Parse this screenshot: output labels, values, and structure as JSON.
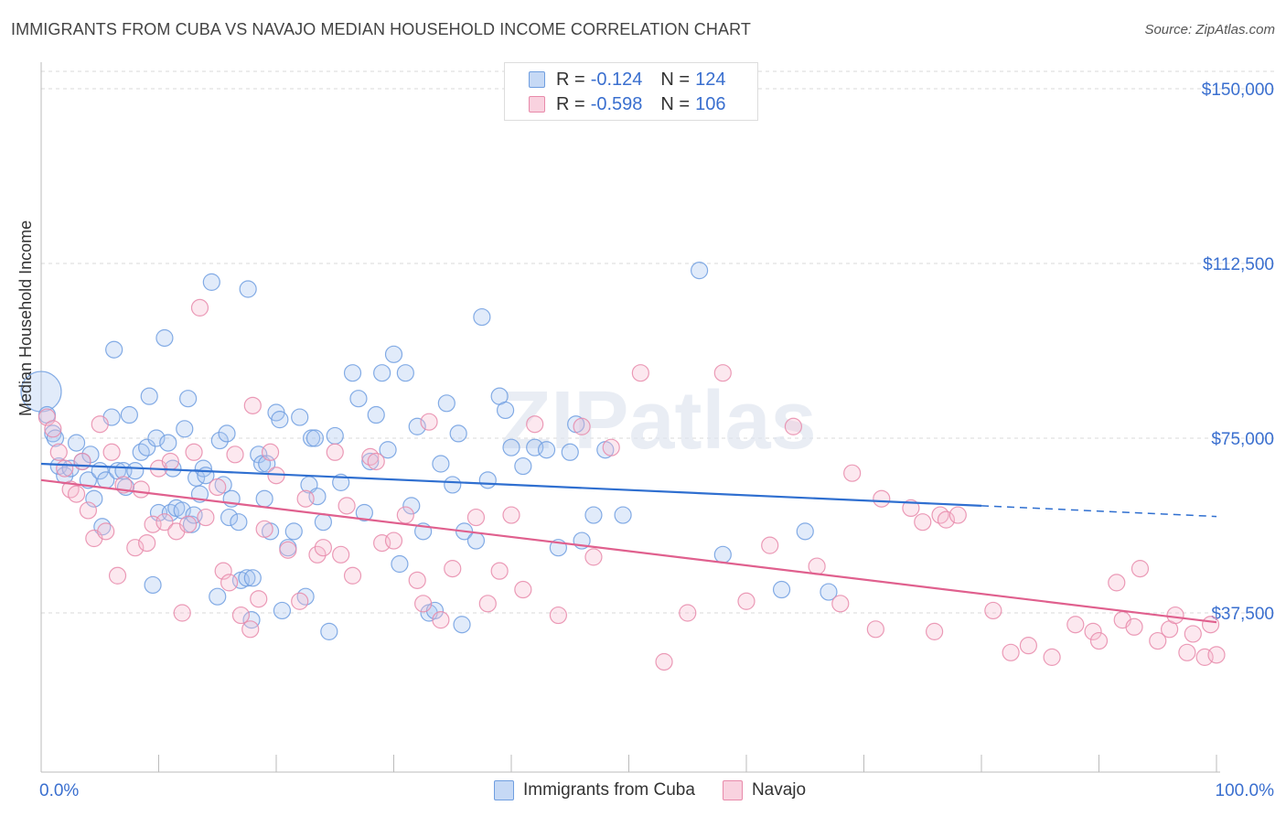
{
  "title": "IMMIGRANTS FROM CUBA VS NAVAJO MEDIAN HOUSEHOLD INCOME CORRELATION CHART",
  "source": "Source: ZipAtlas.com",
  "watermark": "ZIPatlas",
  "legend": {
    "rows": [
      {
        "r_label": "R =",
        "r_value": "-0.124",
        "n_label": "N =",
        "n_value": "124",
        "color": "#a9c6f0",
        "border": "#6f9ee0"
      },
      {
        "r_label": "R =",
        "r_value": "-0.598",
        "n_label": "N =",
        "n_value": "106",
        "color": "#f6bcd0",
        "border": "#e88aaa"
      }
    ]
  },
  "chart_data": {
    "type": "scatter",
    "title": "IMMIGRANTS FROM CUBA VS NAVAJO MEDIAN HOUSEHOLD INCOME CORRELATION CHART",
    "xlabel": "",
    "ylabel": "Median Household Income",
    "xlim": [
      0,
      100
    ],
    "ylim": [
      0,
      150000
    ],
    "x_tick_labels": [
      "0.0%",
      "100.0%"
    ],
    "y_ticks": [
      {
        "value": 150000,
        "label": "$150,000"
      },
      {
        "value": 112500,
        "label": "$112,500"
      },
      {
        "value": 75000,
        "label": "$75,000"
      },
      {
        "value": 37500,
        "label": "$37,500"
      }
    ],
    "series": [
      {
        "name": "Immigrants from Cuba",
        "color": "#6f9ee0",
        "fill": "rgba(169,198,240,0.35)",
        "trend": {
          "x0": 0,
          "y0": 69500,
          "x1": 80,
          "y1": 60500,
          "dash_to_x": 100,
          "dash_to_y": 58200,
          "color": "#2f6fd0"
        },
        "points": [
          [
            0,
            85000
          ],
          [
            0.5,
            80000
          ],
          [
            1,
            76000
          ],
          [
            1.2,
            75000
          ],
          [
            1.5,
            69000
          ],
          [
            2,
            67000
          ],
          [
            2.5,
            68500
          ],
          [
            3,
            74000
          ],
          [
            3.5,
            70000
          ],
          [
            4,
            66000
          ],
          [
            4.2,
            71500
          ],
          [
            4.5,
            62000
          ],
          [
            5,
            68000
          ],
          [
            5.5,
            66000
          ],
          [
            5.2,
            56000
          ],
          [
            6,
            79500
          ],
          [
            6.2,
            94000
          ],
          [
            6.5,
            68000
          ],
          [
            7,
            68000
          ],
          [
            7.2,
            64500
          ],
          [
            7.5,
            80000
          ],
          [
            8,
            68000
          ],
          [
            8.5,
            72000
          ],
          [
            9,
            73000
          ],
          [
            9.2,
            84000
          ],
          [
            9.5,
            43500
          ],
          [
            9.8,
            75000
          ],
          [
            10,
            59000
          ],
          [
            10.5,
            96500
          ],
          [
            10.8,
            74000
          ],
          [
            11,
            59000
          ],
          [
            11.2,
            68500
          ],
          [
            11.5,
            60000
          ],
          [
            12,
            59500
          ],
          [
            12.2,
            77000
          ],
          [
            12.5,
            83500
          ],
          [
            12.8,
            56500
          ],
          [
            13,
            58500
          ],
          [
            13.2,
            66500
          ],
          [
            13.5,
            63000
          ],
          [
            13.8,
            68500
          ],
          [
            14,
            67000
          ],
          [
            14.5,
            108500
          ],
          [
            15,
            41000
          ],
          [
            15.2,
            74500
          ],
          [
            15.5,
            65000
          ],
          [
            15.8,
            76000
          ],
          [
            16,
            58000
          ],
          [
            16.2,
            62000
          ],
          [
            16.8,
            57000
          ],
          [
            17,
            44500
          ],
          [
            17.5,
            45000
          ],
          [
            17.6,
            107000
          ],
          [
            17.9,
            36000
          ],
          [
            18,
            45000
          ],
          [
            18.5,
            71500
          ],
          [
            18.8,
            69500
          ],
          [
            19,
            62000
          ],
          [
            19.2,
            69500
          ],
          [
            19.5,
            55000
          ],
          [
            20,
            80500
          ],
          [
            20.3,
            79000
          ],
          [
            20.5,
            38000
          ],
          [
            21,
            51500
          ],
          [
            21.5,
            55000
          ],
          [
            22,
            79500
          ],
          [
            22.5,
            41000
          ],
          [
            22.8,
            65000
          ],
          [
            23,
            75000
          ],
          [
            23.3,
            75000
          ],
          [
            23.5,
            62500
          ],
          [
            24,
            57000
          ],
          [
            24.5,
            33500
          ],
          [
            25,
            75500
          ],
          [
            25.5,
            65500
          ],
          [
            26.5,
            89000
          ],
          [
            27,
            83500
          ],
          [
            27.5,
            59000
          ],
          [
            28,
            70000
          ],
          [
            28.5,
            80000
          ],
          [
            29,
            89000
          ],
          [
            29.5,
            72500
          ],
          [
            30,
            93000
          ],
          [
            30.5,
            48000
          ],
          [
            31,
            89000
          ],
          [
            31.5,
            60500
          ],
          [
            32,
            77500
          ],
          [
            32.5,
            55000
          ],
          [
            33,
            37500
          ],
          [
            33.5,
            38000
          ],
          [
            34,
            69500
          ],
          [
            34.5,
            82500
          ],
          [
            35,
            65000
          ],
          [
            35.5,
            76000
          ],
          [
            35.8,
            35000
          ],
          [
            36,
            55000
          ],
          [
            37,
            53000
          ],
          [
            37.5,
            101000
          ],
          [
            38,
            66000
          ],
          [
            39,
            84000
          ],
          [
            39.5,
            81000
          ],
          [
            40,
            73000
          ],
          [
            41,
            69000
          ],
          [
            42,
            73000
          ],
          [
            43,
            72500
          ],
          [
            44,
            51500
          ],
          [
            45,
            72000
          ],
          [
            45.5,
            78000
          ],
          [
            46,
            53000
          ],
          [
            47,
            58500
          ],
          [
            48,
            72500
          ],
          [
            49.5,
            58500
          ],
          [
            56,
            111000
          ],
          [
            58,
            50000
          ],
          [
            63,
            42500
          ],
          [
            65,
            55000
          ],
          [
            67,
            42000
          ]
        ]
      },
      {
        "name": "Navajo",
        "color": "#e88aaa",
        "fill": "rgba(246,188,208,0.35)",
        "trend": {
          "x0": 0,
          "y0": 66000,
          "x1": 100,
          "y1": 35500,
          "color": "#e0608e"
        },
        "points": [
          [
            0.5,
            79500
          ],
          [
            1,
            77000
          ],
          [
            1.5,
            72000
          ],
          [
            2,
            68500
          ],
          [
            2.5,
            64000
          ],
          [
            3,
            63000
          ],
          [
            3.5,
            70000
          ],
          [
            4,
            59500
          ],
          [
            4.5,
            53500
          ],
          [
            5,
            78000
          ],
          [
            5.5,
            55000
          ],
          [
            6,
            72000
          ],
          [
            6.5,
            45500
          ],
          [
            7,
            65000
          ],
          [
            8,
            51500
          ],
          [
            8.5,
            64000
          ],
          [
            9,
            52500
          ],
          [
            9.5,
            56500
          ],
          [
            10,
            68500
          ],
          [
            10.5,
            57000
          ],
          [
            11,
            70000
          ],
          [
            11.5,
            55000
          ],
          [
            12,
            37500
          ],
          [
            12.5,
            56500
          ],
          [
            13,
            72000
          ],
          [
            13.5,
            103000
          ],
          [
            14,
            58000
          ],
          [
            15,
            64500
          ],
          [
            15.5,
            46500
          ],
          [
            16,
            44000
          ],
          [
            16.5,
            71500
          ],
          [
            17,
            37000
          ],
          [
            17.8,
            34000
          ],
          [
            18,
            82000
          ],
          [
            18.5,
            40500
          ],
          [
            19,
            55500
          ],
          [
            19.5,
            72000
          ],
          [
            20,
            67000
          ],
          [
            21,
            51000
          ],
          [
            22,
            40000
          ],
          [
            22.5,
            62000
          ],
          [
            23.5,
            50000
          ],
          [
            24,
            51500
          ],
          [
            25,
            72000
          ],
          [
            25.5,
            50000
          ],
          [
            26,
            60500
          ],
          [
            26.5,
            45500
          ],
          [
            28,
            71000
          ],
          [
            28.5,
            70000
          ],
          [
            29,
            52500
          ],
          [
            30,
            53000
          ],
          [
            31,
            58500
          ],
          [
            32,
            44500
          ],
          [
            32.5,
            39500
          ],
          [
            33,
            78500
          ],
          [
            34,
            36000
          ],
          [
            35,
            47000
          ],
          [
            37,
            58000
          ],
          [
            38,
            39500
          ],
          [
            39,
            46500
          ],
          [
            40,
            58500
          ],
          [
            41,
            42500
          ],
          [
            42,
            78000
          ],
          [
            44,
            37000
          ],
          [
            46,
            77500
          ],
          [
            47,
            49500
          ],
          [
            48.5,
            73000
          ],
          [
            51,
            89000
          ],
          [
            53,
            27000
          ],
          [
            55,
            37500
          ],
          [
            58,
            89000
          ],
          [
            60,
            40000
          ],
          [
            62,
            52000
          ],
          [
            64,
            77500
          ],
          [
            66,
            47500
          ],
          [
            68,
            39500
          ],
          [
            69,
            67500
          ],
          [
            71,
            34000
          ],
          [
            71.5,
            62000
          ],
          [
            74,
            60000
          ],
          [
            75,
            57000
          ],
          [
            76,
            33500
          ],
          [
            76.5,
            58500
          ],
          [
            77,
            57500
          ],
          [
            78,
            58500
          ],
          [
            81,
            38000
          ],
          [
            82.5,
            29000
          ],
          [
            84,
            30500
          ],
          [
            86,
            28000
          ],
          [
            88,
            35000
          ],
          [
            89.5,
            33500
          ],
          [
            90,
            31500
          ],
          [
            91.5,
            44000
          ],
          [
            92,
            36000
          ],
          [
            93,
            34500
          ],
          [
            93.5,
            47000
          ],
          [
            95,
            31500
          ],
          [
            96,
            34000
          ],
          [
            96.5,
            37000
          ],
          [
            97.5,
            29000
          ],
          [
            98,
            33000
          ],
          [
            99,
            28000
          ],
          [
            99.5,
            35000
          ],
          [
            100,
            28500
          ]
        ]
      }
    ]
  },
  "bottom_legend": [
    {
      "label": "Immigrants from Cuba",
      "color": "#a9c6f0",
      "border": "#6f9ee0"
    },
    {
      "label": "Navajo",
      "color": "#f6bcd0",
      "border": "#e88aaa"
    }
  ]
}
